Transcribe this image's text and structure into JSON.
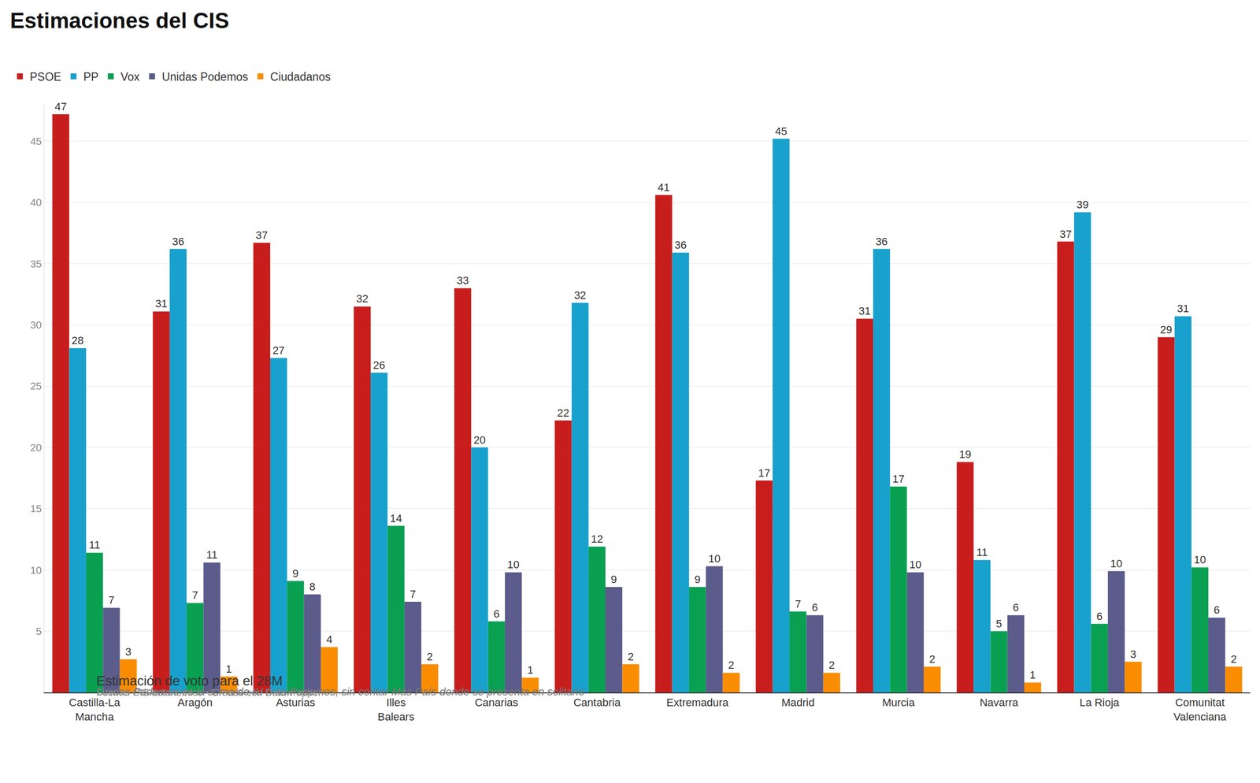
{
  "chart_data": {
    "type": "bar",
    "title": "Estimaciones del CIS",
    "subtitle": "Estimación de voto para el 28M",
    "annotations": [
      "Unidas Podemos es la suma de IU más Podemos, sin contar Más País donde se presenta en solitario",
      "Fuente: CIS autonómico • Creado con Datawrapper"
    ],
    "categories": [
      "Castilla-La Mancha",
      "Aragón",
      "Asturias",
      "Illes Balears",
      "Canarias",
      "Cantabria",
      "Extremadura",
      "Madrid",
      "Murcia",
      "Navarra",
      "La Rioja",
      "Comunitat Valenciana"
    ],
    "series": [
      {
        "name": "PSOE",
        "color": "#c71e1d",
        "values": [
          47.2,
          31.1,
          36.7,
          31.5,
          33.0,
          22.2,
          40.6,
          17.3,
          30.5,
          18.8,
          36.8,
          29.0
        ],
        "value_labels": [
          "47",
          "31",
          "37",
          "32",
          "33",
          "22",
          "41",
          "17",
          "31",
          "19",
          "37",
          "29"
        ]
      },
      {
        "name": "PP",
        "color": "#18a1cd",
        "values": [
          28.1,
          36.2,
          27.3,
          26.1,
          20.0,
          31.8,
          35.9,
          45.2,
          36.2,
          10.8,
          39.2,
          30.7
        ],
        "value_labels": [
          "28",
          "36",
          "27",
          "26",
          "20",
          "32",
          "36",
          "45",
          "36",
          "11",
          "39",
          "31"
        ]
      },
      {
        "name": "Vox",
        "color": "#09a052",
        "values": [
          11.4,
          7.3,
          9.1,
          13.6,
          5.8,
          11.9,
          8.6,
          6.6,
          16.8,
          5.0,
          5.6,
          10.2
        ],
        "value_labels": [
          "11",
          "7",
          "9",
          "14",
          "6",
          "12",
          "9",
          "7",
          "17",
          "5",
          "6",
          "10"
        ]
      },
      {
        "name": "Unidas Podemos",
        "color": "#5b5b8c",
        "values": [
          6.9,
          10.6,
          8.0,
          7.4,
          9.8,
          8.6,
          10.3,
          6.3,
          9.8,
          6.3,
          9.9,
          6.1
        ],
        "value_labels": [
          "7",
          "11",
          "8",
          "7",
          "10",
          "9",
          "10",
          "6",
          "10",
          "6",
          "10",
          "6"
        ]
      },
      {
        "name": "Ciudadanos",
        "color": "#fa8c00",
        "values": [
          2.7,
          1.3,
          3.7,
          2.3,
          1.2,
          2.3,
          1.6,
          1.6,
          2.1,
          0.8,
          2.5,
          2.1
        ],
        "value_labels": [
          "3",
          "1",
          "4",
          "2",
          "1",
          "2",
          "2",
          "2",
          "2",
          "1",
          "3",
          "2"
        ]
      }
    ],
    "ylim": [
      0,
      48
    ],
    "yticks": [
      5,
      10,
      15,
      20,
      25,
      30,
      35,
      40,
      45
    ],
    "grid": true,
    "data_labels": true,
    "legend": "top-left"
  }
}
